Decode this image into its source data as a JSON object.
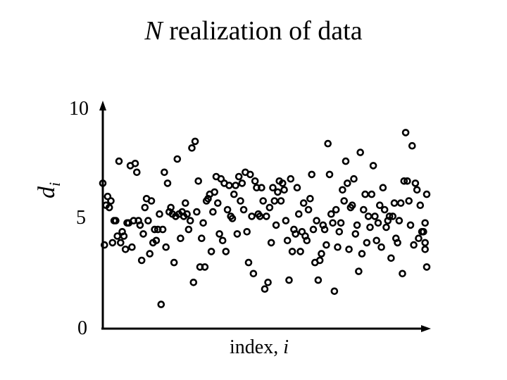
{
  "chart_data": {
    "type": "scatter",
    "title_var": "N",
    "title_rest": " realization of data",
    "ylabel_main": "d",
    "ylabel_sub": "i",
    "xlabel_main": "index, ",
    "xlabel_var": "i",
    "yticks": [
      "0",
      "5",
      "10"
    ],
    "ylim": [
      0,
      10
    ],
    "xlim": [
      0,
      200
    ],
    "marker_color": "#000000",
    "points": [
      [
        0,
        6.6
      ],
      [
        1,
        3.8
      ],
      [
        2,
        5.6
      ],
      [
        3,
        6.0
      ],
      [
        4,
        5.5
      ],
      [
        5,
        5.8
      ],
      [
        6,
        3.9
      ],
      [
        7,
        4.9
      ],
      [
        8,
        4.9
      ],
      [
        9,
        4.2
      ],
      [
        10,
        7.6
      ],
      [
        11,
        3.9
      ],
      [
        12,
        4.4
      ],
      [
        13,
        4.2
      ],
      [
        14,
        3.6
      ],
      [
        15,
        4.8
      ],
      [
        16,
        4.8
      ],
      [
        17,
        7.4
      ],
      [
        18,
        3.7
      ],
      [
        19,
        4.9
      ],
      [
        20,
        7.5
      ],
      [
        21,
        7.1
      ],
      [
        22,
        4.9
      ],
      [
        23,
        4.7
      ],
      [
        24,
        3.1
      ],
      [
        25,
        4.3
      ],
      [
        26,
        5.5
      ],
      [
        27,
        5.9
      ],
      [
        28,
        4.9
      ],
      [
        29,
        3.4
      ],
      [
        30,
        5.8
      ],
      [
        31,
        3.9
      ],
      [
        32,
        4.5
      ],
      [
        33,
        4.0
      ],
      [
        34,
        4.5
      ],
      [
        35,
        5.2
      ],
      [
        36,
        1.1
      ],
      [
        37,
        4.5
      ],
      [
        38,
        7.1
      ],
      [
        39,
        3.7
      ],
      [
        40,
        6.6
      ],
      [
        41,
        5.3
      ],
      [
        42,
        5.5
      ],
      [
        43,
        5.2
      ],
      [
        44,
        3.0
      ],
      [
        45,
        5.1
      ],
      [
        46,
        7.7
      ],
      [
        47,
        5.2
      ],
      [
        48,
        4.1
      ],
      [
        49,
        5.3
      ],
      [
        50,
        5.1
      ],
      [
        51,
        5.7
      ],
      [
        52,
        5.2
      ],
      [
        53,
        4.5
      ],
      [
        54,
        4.9
      ],
      [
        55,
        8.2
      ],
      [
        56,
        2.1
      ],
      [
        57,
        8.5
      ],
      [
        58,
        5.3
      ],
      [
        59,
        6.7
      ],
      [
        60,
        2.8
      ],
      [
        61,
        4.1
      ],
      [
        62,
        4.8
      ],
      [
        63,
        2.8
      ],
      [
        64,
        5.8
      ],
      [
        65,
        5.9
      ],
      [
        66,
        6.1
      ],
      [
        67,
        3.5
      ],
      [
        68,
        5.3
      ],
      [
        69,
        6.2
      ],
      [
        70,
        6.9
      ],
      [
        71,
        5.7
      ],
      [
        72,
        4.3
      ],
      [
        73,
        6.8
      ],
      [
        74,
        4.0
      ],
      [
        75,
        6.6
      ],
      [
        76,
        3.5
      ],
      [
        77,
        5.4
      ],
      [
        78,
        6.5
      ],
      [
        79,
        5.1
      ],
      [
        80,
        5.0
      ],
      [
        81,
        6.1
      ],
      [
        82,
        6.5
      ],
      [
        83,
        4.3
      ],
      [
        84,
        6.9
      ],
      [
        85,
        5.8
      ],
      [
        86,
        6.6
      ],
      [
        87,
        5.4
      ],
      [
        88,
        7.1
      ],
      [
        89,
        4.4
      ],
      [
        90,
        3.0
      ],
      [
        91,
        7.0
      ],
      [
        92,
        5.1
      ],
      [
        93,
        2.5
      ],
      [
        94,
        6.7
      ],
      [
        95,
        6.4
      ],
      [
        96,
        5.2
      ],
      [
        97,
        5.1
      ],
      [
        98,
        6.4
      ],
      [
        99,
        5.8
      ],
      [
        100,
        1.8
      ],
      [
        101,
        5.1
      ],
      [
        102,
        2.1
      ],
      [
        103,
        5.5
      ],
      [
        104,
        3.9
      ],
      [
        105,
        6.4
      ],
      [
        106,
        5.8
      ],
      [
        107,
        4.7
      ],
      [
        108,
        6.2
      ],
      [
        109,
        6.7
      ],
      [
        110,
        5.8
      ],
      [
        111,
        6.6
      ],
      [
        112,
        6.3
      ],
      [
        113,
        4.9
      ],
      [
        114,
        4.0
      ],
      [
        115,
        2.2
      ],
      [
        116,
        6.8
      ],
      [
        117,
        3.5
      ],
      [
        118,
        4.5
      ],
      [
        119,
        4.3
      ],
      [
        120,
        6.4
      ],
      [
        121,
        5.2
      ],
      [
        122,
        3.5
      ],
      [
        123,
        4.4
      ],
      [
        124,
        5.7
      ],
      [
        125,
        4.2
      ],
      [
        126,
        4.0
      ],
      [
        127,
        5.4
      ],
      [
        128,
        5.9
      ],
      [
        129,
        7.0
      ],
      [
        130,
        4.5
      ],
      [
        131,
        3.0
      ],
      [
        132,
        4.9
      ],
      [
        133,
        2.2
      ],
      [
        134,
        3.1
      ],
      [
        135,
        3.4
      ],
      [
        136,
        4.7
      ],
      [
        137,
        4.5
      ],
      [
        138,
        3.8
      ],
      [
        139,
        8.4
      ],
      [
        140,
        7.0
      ],
      [
        141,
        5.2
      ],
      [
        142,
        4.8
      ],
      [
        143,
        1.7
      ],
      [
        144,
        5.4
      ],
      [
        145,
        3.7
      ],
      [
        146,
        4.4
      ],
      [
        147,
        4.8
      ],
      [
        148,
        6.3
      ],
      [
        149,
        5.8
      ],
      [
        150,
        7.6
      ],
      [
        151,
        6.6
      ],
      [
        152,
        3.6
      ],
      [
        153,
        5.5
      ],
      [
        154,
        5.6
      ],
      [
        155,
        6.8
      ],
      [
        156,
        4.3
      ],
      [
        157,
        4.7
      ],
      [
        158,
        2.6
      ],
      [
        159,
        8.0
      ],
      [
        160,
        3.4
      ],
      [
        161,
        5.4
      ],
      [
        162,
        6.1
      ],
      [
        163,
        3.9
      ],
      [
        164,
        5.1
      ],
      [
        165,
        4.6
      ],
      [
        166,
        6.1
      ],
      [
        167,
        7.4
      ],
      [
        168,
        5.1
      ],
      [
        169,
        4.0
      ],
      [
        170,
        4.8
      ],
      [
        171,
        5.6
      ],
      [
        172,
        3.7
      ],
      [
        173,
        6.4
      ],
      [
        174,
        5.4
      ],
      [
        175,
        4.6
      ],
      [
        176,
        4.9
      ],
      [
        177,
        5.1
      ],
      [
        178,
        3.2
      ],
      [
        179,
        5.1
      ],
      [
        180,
        5.7
      ],
      [
        181,
        4.1
      ],
      [
        182,
        3.9
      ],
      [
        183,
        4.9
      ],
      [
        184,
        5.7
      ],
      [
        185,
        2.5
      ],
      [
        186,
        6.7
      ],
      [
        187,
        8.9
      ],
      [
        188,
        6.7
      ],
      [
        189,
        5.8
      ],
      [
        190,
        4.7
      ],
      [
        191,
        8.3
      ],
      [
        192,
        3.8
      ],
      [
        193,
        6.6
      ],
      [
        194,
        6.3
      ],
      [
        195,
        4.1
      ],
      [
        196,
        5.6
      ],
      [
        197,
        4.4
      ],
      [
        198,
        4.4
      ],
      [
        199,
        3.9
      ],
      [
        199,
        4.8
      ],
      [
        199,
        3.6
      ],
      [
        200,
        2.8
      ],
      [
        200,
        6.1
      ]
    ]
  }
}
